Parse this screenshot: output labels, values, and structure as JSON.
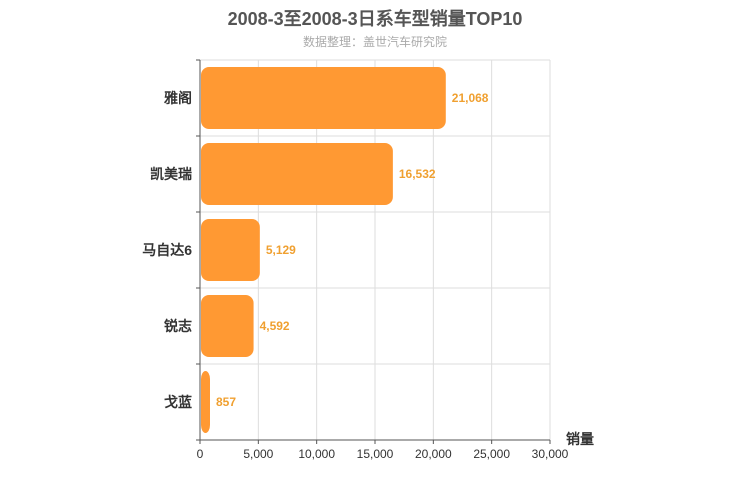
{
  "chart_data": {
    "type": "bar",
    "orientation": "horizontal",
    "title": "2008-3至2008-3日系车型销量TOP10",
    "subtitle": "数据整理：盖世汽车研究院",
    "categories": [
      "雅阁",
      "凯美瑞",
      "马自达6",
      "锐志",
      "戈蓝"
    ],
    "values": [
      21068,
      16532,
      5129,
      4592,
      857
    ],
    "value_labels": [
      "21,068",
      "16,532",
      "5,129",
      "4,592",
      "857"
    ],
    "xlabel": "销量",
    "ylabel": "",
    "xlim": [
      0,
      30000
    ],
    "xticks": [
      0,
      5000,
      10000,
      15000,
      20000,
      25000,
      30000
    ],
    "xtick_labels": [
      "0",
      "5,000",
      "10,000",
      "15,000",
      "20,000",
      "25,000",
      "30,000"
    ],
    "grid": true,
    "legend": "none",
    "colors": {
      "bar": "#ff9933",
      "label": "#f0a030",
      "grid": "#dddddd",
      "axis": "#555555"
    }
  }
}
